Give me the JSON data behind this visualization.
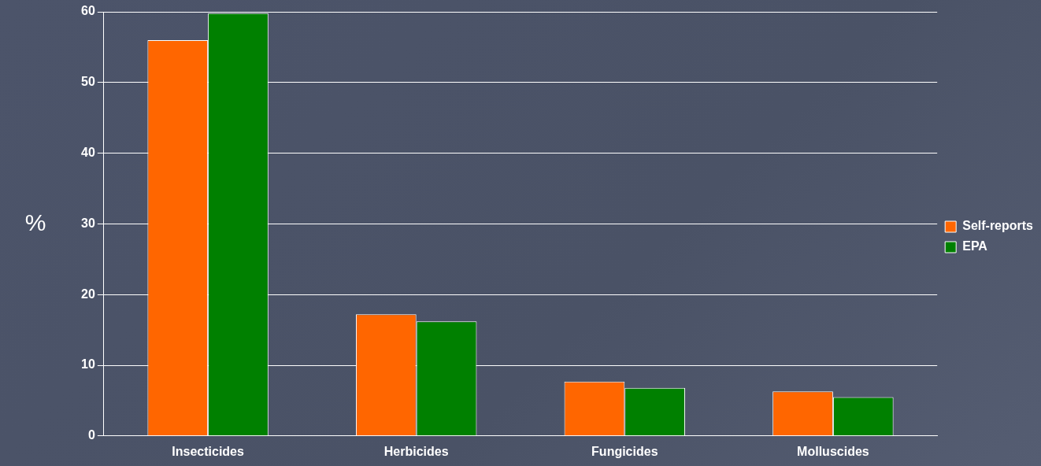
{
  "chart_data": {
    "type": "bar",
    "ylabel": "%",
    "categories": [
      "Insecticides",
      "Herbicides",
      "Fungicides",
      "Molluscides"
    ],
    "series": [
      {
        "name": "Self-reports",
        "color": "#ff6600",
        "values": [
          56,
          17.2,
          7.7,
          6.3
        ]
      },
      {
        "name": "EPA",
        "color": "#008000",
        "values": [
          59.8,
          16.2,
          6.8,
          5.5
        ]
      }
    ],
    "ylim": [
      0,
      60
    ],
    "yticks": [
      0,
      10,
      20,
      30,
      40,
      50,
      60
    ],
    "grid": "y",
    "legend": "right"
  }
}
